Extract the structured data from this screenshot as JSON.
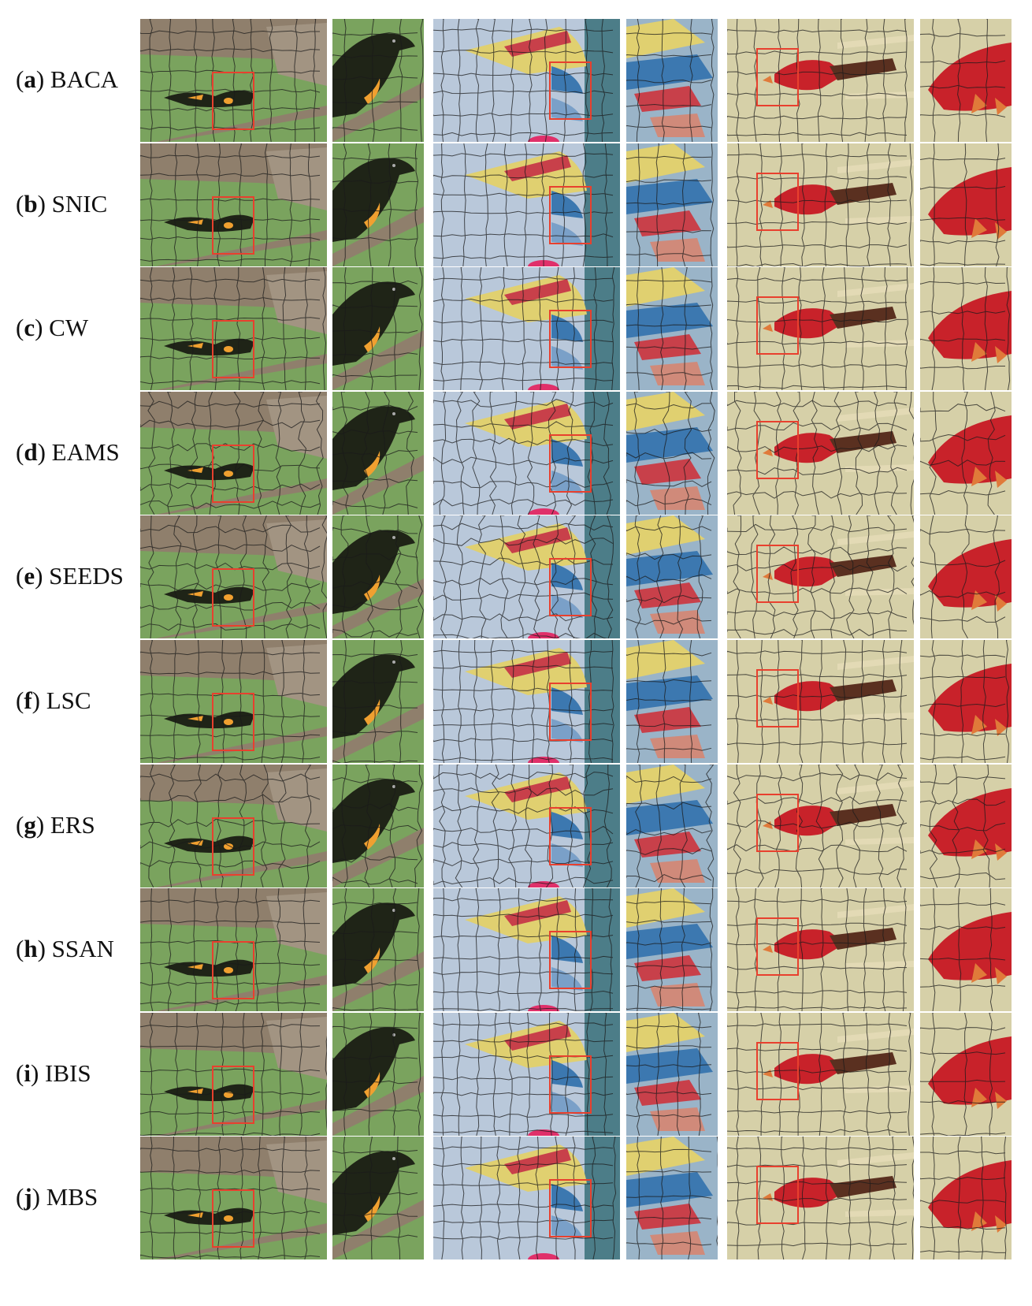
{
  "rows": [
    {
      "letter": "a",
      "method": "BACA"
    },
    {
      "letter": "b",
      "method": "SNIC"
    },
    {
      "letter": "c",
      "method": "CW"
    },
    {
      "letter": "d",
      "method": "EAMS"
    },
    {
      "letter": "e",
      "method": "SEEDS"
    },
    {
      "letter": "f",
      "method": "LSC"
    },
    {
      "letter": "g",
      "method": "ERS"
    },
    {
      "letter": "h",
      "method": "SSAN"
    },
    {
      "letter": "i",
      "method": "IBIS"
    },
    {
      "letter": "j",
      "method": "MBS"
    }
  ],
  "colors": {
    "bird_bg": "#7aa35e",
    "branch": "#8f7f6c",
    "bird_body": "#1f2417",
    "bird_orange": "#f0a030",
    "sky": "#b9c8da",
    "sea": "#4c7d88",
    "sail_yellow": "#e0d070",
    "sail_red": "#c8404a",
    "sail_blue": "#3c78b0",
    "buoy": "#e0306a",
    "cardinal_bg": "#d6d0a8",
    "cardinal_red": "#c8222a",
    "cardinal_beak": "#e07a3a",
    "cardinal_tail": "#5a3020",
    "zoom_box": "#e8402e",
    "contour": "#1a1a1a"
  }
}
